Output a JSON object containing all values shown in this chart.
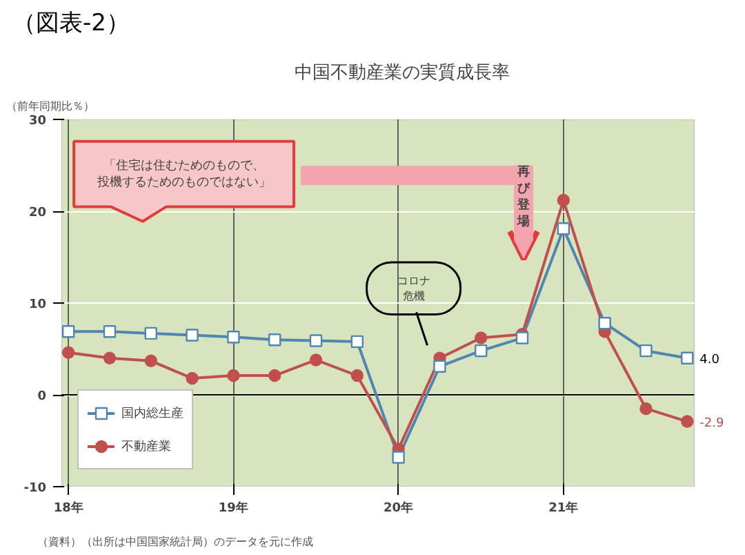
{
  "chart_data": {
    "type": "line",
    "title": "中国不動産業の実質成長率",
    "subtitle": "（図表-2）",
    "ylabel": "（前年同期比％）",
    "categories": [
      "18年",
      null,
      null,
      null,
      "19年",
      null,
      null,
      null,
      "20年",
      null,
      null,
      null,
      "21年",
      null,
      null,
      null
    ],
    "ylim": [
      -10,
      30
    ],
    "yticks": [
      -10,
      0,
      10,
      20,
      30
    ],
    "grid": true,
    "legend": "bottom left",
    "line_style": "solid",
    "series": [
      {
        "name": "国内総生産",
        "color": "#4f86b4",
        "marker": "square",
        "values": [
          6.9,
          6.9,
          6.7,
          6.5,
          6.3,
          6.0,
          5.9,
          5.8,
          -6.8,
          3.1,
          4.8,
          6.2,
          18.1,
          7.8,
          4.8,
          4.0
        ],
        "value_labels": [
          null,
          null,
          null,
          null,
          null,
          null,
          null,
          null,
          null,
          null,
          null,
          null,
          null,
          null,
          null,
          "4.0"
        ]
      },
      {
        "name": "不動産業",
        "color": "#c0504d",
        "marker": "circle",
        "values": [
          4.6,
          4.0,
          3.7,
          1.8,
          2.1,
          2.1,
          3.8,
          2.1,
          -5.9,
          4.0,
          6.2,
          6.6,
          21.2,
          6.9,
          -1.5,
          -2.9
        ],
        "value_labels": [
          null,
          null,
          null,
          null,
          null,
          null,
          null,
          null,
          null,
          null,
          null,
          null,
          null,
          null,
          null,
          "-2.9"
        ]
      }
    ],
    "ref_lines": [
      {
        "axis": "y",
        "value": 0,
        "color": "#000000"
      }
    ],
    "annotations": [
      "「住宅は住むためのもので、投機するためのものではない」",
      "再び登場",
      "コロナ危機",
      "（資料）（出所は中国国家統計局）のデータを元に作成"
    ]
  }
}
